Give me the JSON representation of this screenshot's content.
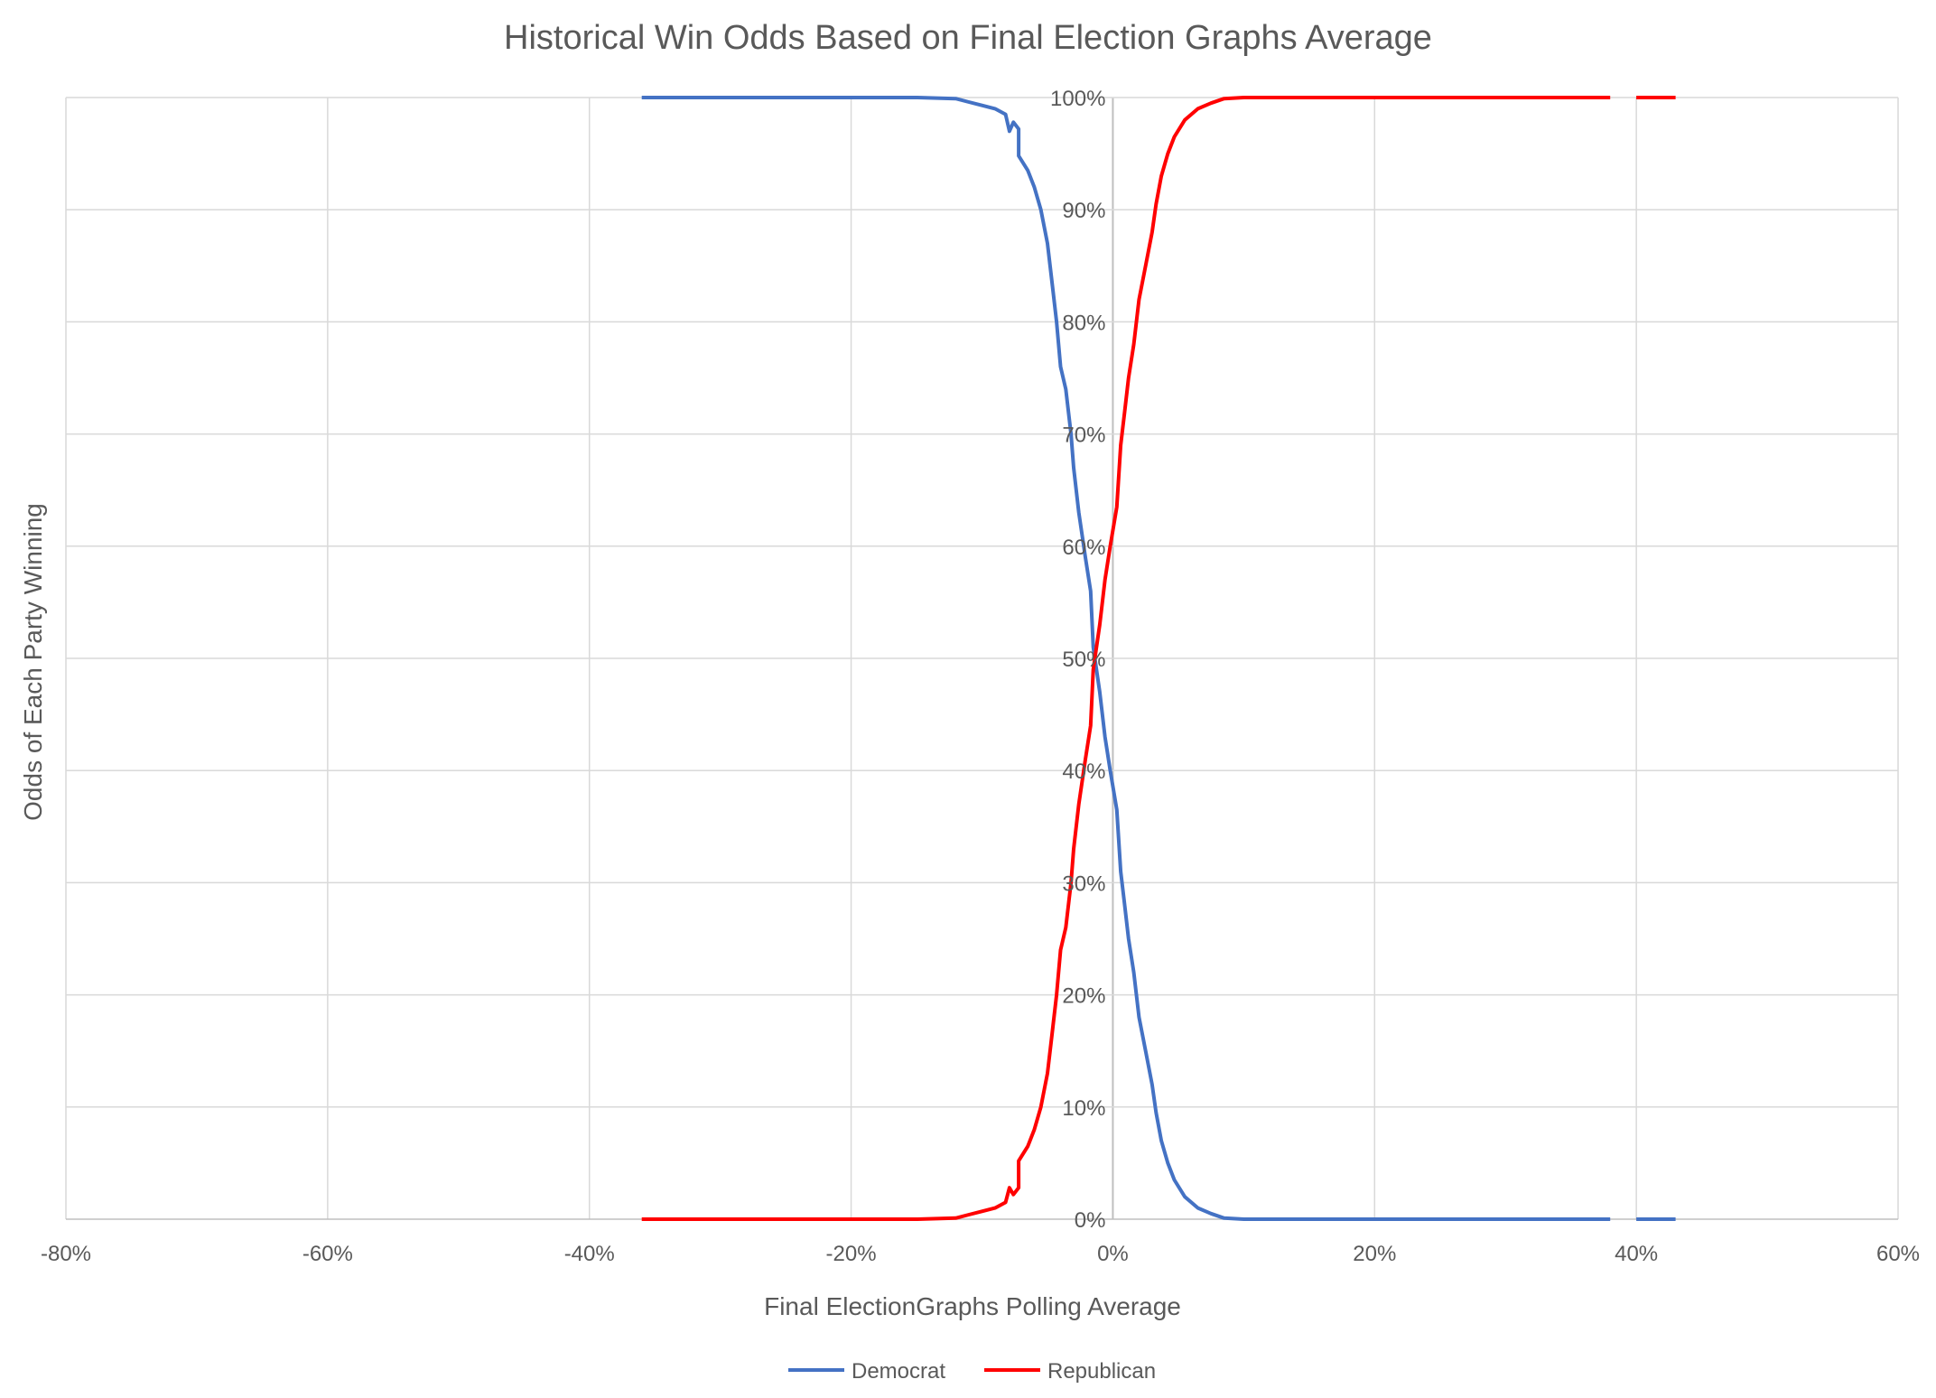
{
  "chart_data": {
    "type": "line",
    "title": "Historical Win Odds Based on Final Election Graphs Average",
    "xlabel": "Final ElectionGraphs Polling Average",
    "ylabel": "Odds of Each Party Winning",
    "xlim": [
      -80,
      60
    ],
    "ylim": [
      0,
      100
    ],
    "x_ticks": [
      "-80%",
      "-60%",
      "-40%",
      "-20%",
      "0%",
      "20%",
      "40%",
      "60%"
    ],
    "y_ticks": [
      "0%",
      "10%",
      "20%",
      "30%",
      "40%",
      "50%",
      "60%",
      "70%",
      "80%",
      "90%",
      "100%"
    ],
    "grid": true,
    "legend_position": "bottom",
    "series": [
      {
        "name": "Democrat",
        "color": "#4472C4",
        "segments": [
          [
            [
              -36,
              100
            ],
            [
              -20,
              100
            ],
            [
              -15,
              100
            ],
            [
              -12,
              99.9
            ],
            [
              -11,
              99.6
            ],
            [
              -10,
              99.3
            ],
            [
              -9,
              99
            ],
            [
              -8.2,
              98.5
            ],
            [
              -7.9,
              97
            ],
            [
              -7.6,
              97.8
            ],
            [
              -7.2,
              97.2
            ],
            [
              -7.2,
              94.8
            ],
            [
              -6.5,
              93.5
            ],
            [
              -6,
              92
            ],
            [
              -5.5,
              90
            ],
            [
              -5,
              87
            ],
            [
              -4.6,
              83
            ],
            [
              -4.3,
              80
            ],
            [
              -4,
              76
            ],
            [
              -3.6,
              74
            ],
            [
              -3.2,
              70
            ],
            [
              -3,
              67
            ],
            [
              -2.6,
              63
            ],
            [
              -2.1,
              59
            ],
            [
              -1.7,
              56
            ],
            [
              -1.5,
              51
            ],
            [
              -1,
              47
            ],
            [
              -0.6,
              43
            ],
            [
              -0.2,
              40
            ],
            [
              0.3,
              36.5
            ],
            [
              0.6,
              31
            ],
            [
              0.9,
              28
            ],
            [
              1.2,
              25
            ],
            [
              1.6,
              22
            ],
            [
              2,
              18
            ],
            [
              2.5,
              15
            ],
            [
              3,
              12
            ],
            [
              3.3,
              9.5
            ],
            [
              3.7,
              7
            ],
            [
              4.2,
              5
            ],
            [
              4.7,
              3.5
            ],
            [
              5.5,
              2
            ],
            [
              6.5,
              1
            ],
            [
              7.5,
              0.5
            ],
            [
              8.5,
              0.1
            ],
            [
              10,
              0
            ],
            [
              20,
              0
            ],
            [
              30,
              0
            ],
            [
              38,
              0
            ]
          ],
          [
            [
              40,
              0
            ],
            [
              43,
              0
            ]
          ]
        ]
      },
      {
        "name": "Republican",
        "color": "#FF0000",
        "segments": [
          [
            [
              -36,
              0
            ],
            [
              -20,
              0
            ],
            [
              -15,
              0
            ],
            [
              -12,
              0.1
            ],
            [
              -11,
              0.4
            ],
            [
              -10,
              0.7
            ],
            [
              -9,
              1
            ],
            [
              -8.2,
              1.5
            ],
            [
              -7.9,
              2.8
            ],
            [
              -7.6,
              2.2
            ],
            [
              -7.2,
              2.8
            ],
            [
              -7.2,
              5.2
            ],
            [
              -6.5,
              6.5
            ],
            [
              -6,
              8
            ],
            [
              -5.5,
              10
            ],
            [
              -5,
              13
            ],
            [
              -4.6,
              17
            ],
            [
              -4.3,
              20
            ],
            [
              -4,
              24
            ],
            [
              -3.6,
              26
            ],
            [
              -3.2,
              30
            ],
            [
              -3,
              33
            ],
            [
              -2.6,
              37
            ],
            [
              -2.1,
              41
            ],
            [
              -1.7,
              44
            ],
            [
              -1.5,
              49
            ],
            [
              -1,
              53
            ],
            [
              -0.6,
              57
            ],
            [
              -0.2,
              60
            ],
            [
              0.3,
              63.5
            ],
            [
              0.6,
              69
            ],
            [
              0.9,
              72
            ],
            [
              1.2,
              75
            ],
            [
              1.6,
              78
            ],
            [
              2,
              82
            ],
            [
              2.5,
              85
            ],
            [
              3,
              88
            ],
            [
              3.3,
              90.5
            ],
            [
              3.7,
              93
            ],
            [
              4.2,
              95
            ],
            [
              4.7,
              96.5
            ],
            [
              5.5,
              98
            ],
            [
              6.5,
              99
            ],
            [
              7.5,
              99.5
            ],
            [
              8.5,
              99.9
            ],
            [
              10,
              100
            ],
            [
              20,
              100
            ],
            [
              30,
              100
            ],
            [
              38,
              100
            ]
          ],
          [
            [
              40,
              100
            ],
            [
              43,
              100
            ]
          ]
        ]
      }
    ]
  }
}
